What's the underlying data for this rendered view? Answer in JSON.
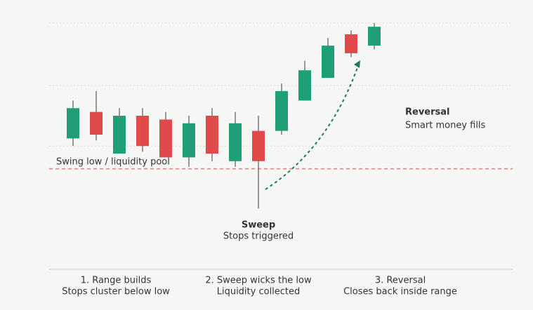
{
  "chart_data": {
    "type": "candlestick",
    "open": [
      38,
      52,
      30,
      50,
      48,
      28,
      50,
      26,
      42,
      42,
      58,
      70,
      93,
      87
    ],
    "high": [
      58,
      63,
      54,
      54,
      52,
      50,
      54,
      52,
      50,
      67,
      79,
      91,
      95,
      99
    ],
    "low": [
      34,
      37,
      30,
      31,
      28,
      23,
      26,
      23,
      1,
      40,
      58,
      70,
      81,
      85
    ],
    "close": [
      54,
      40,
      50,
      34,
      28,
      46,
      30,
      46,
      26,
      63,
      74,
      87,
      83,
      97
    ],
    "up_color": "#1f9e78",
    "down_color": "#e04a4a",
    "ylim": [
      0,
      100
    ],
    "grid": true,
    "gridlines": [
      34,
      66,
      99
    ],
    "level": {
      "value": 22,
      "label": "Swing low / liquidity pool",
      "color": "#e88080"
    },
    "annotations": [
      {
        "title": "Sweep",
        "text": "Stops triggered"
      },
      {
        "title": "Reversal",
        "text": "Smart money fills"
      }
    ],
    "captions": [
      {
        "title": "1. Range builds",
        "text": "Stops cluster below low"
      },
      {
        "title": "2. Sweep wicks the low",
        "text": "Liquidity collected"
      },
      {
        "title": "3. Reversal",
        "text": "Closes back inside range"
      }
    ]
  }
}
